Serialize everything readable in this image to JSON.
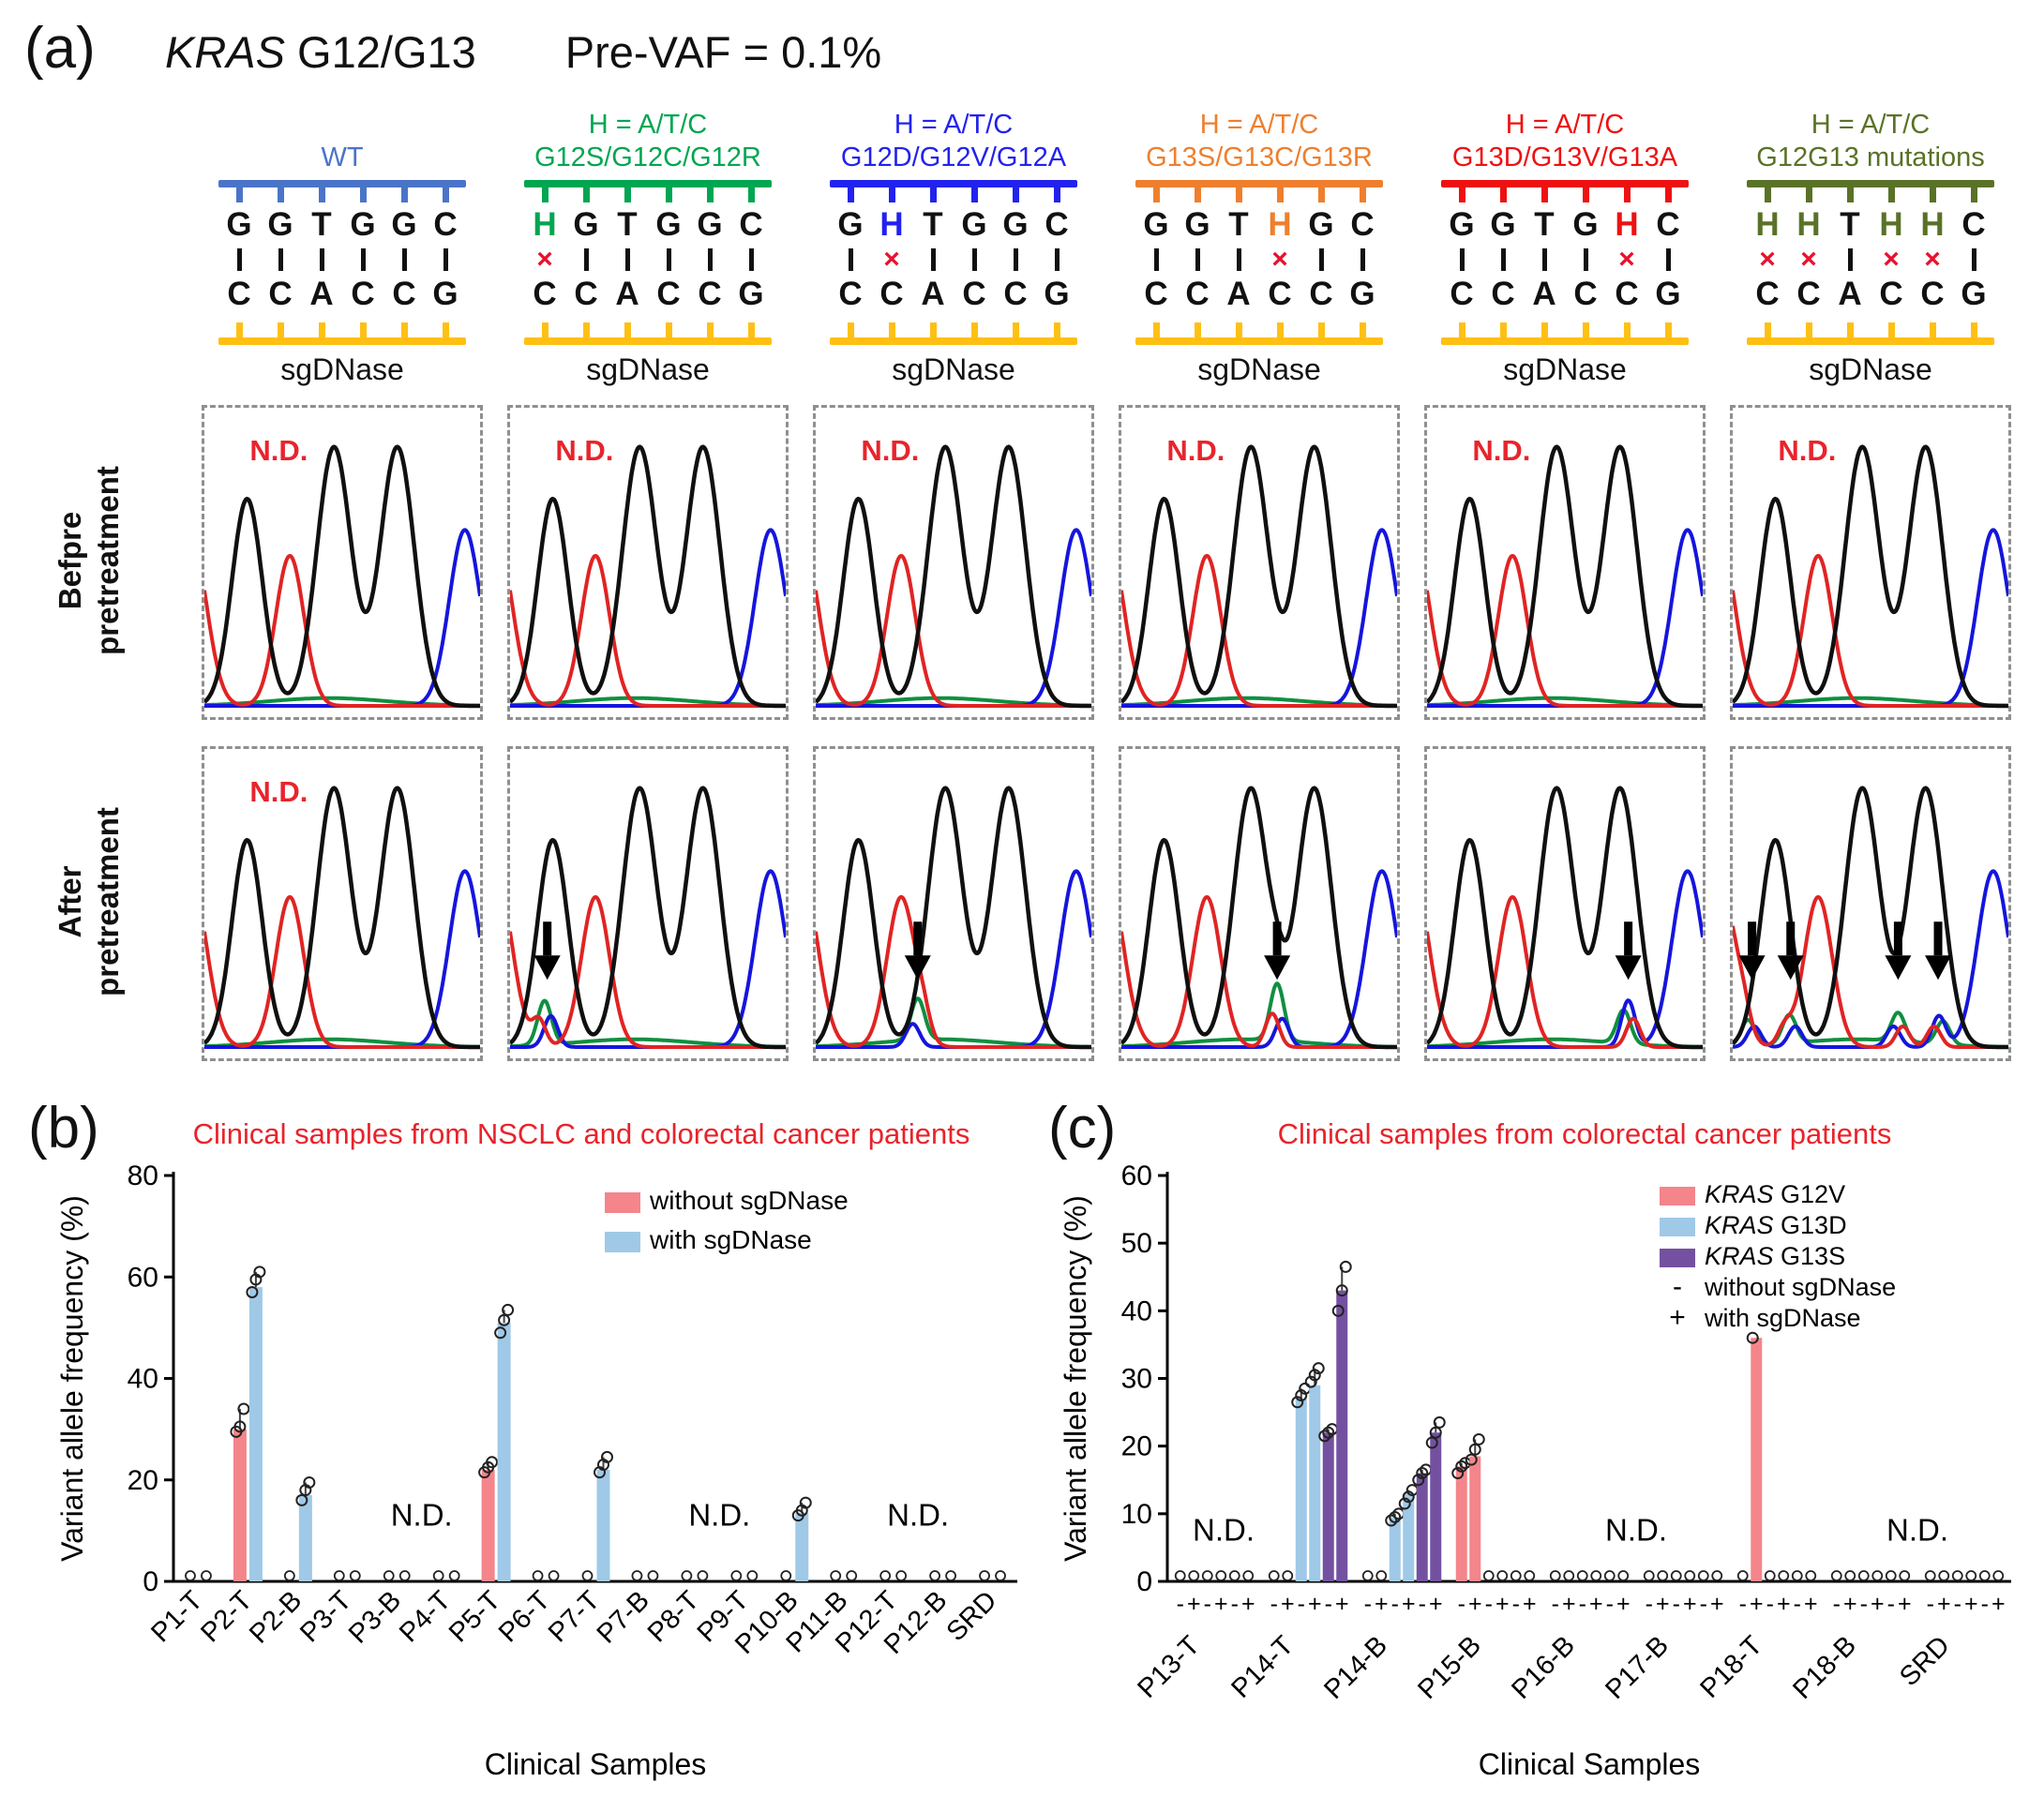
{
  "panel_a": {
    "label": "(a)",
    "title_gene": "KRAS",
    "title_rest": " G12/G13",
    "title_vaf": "Pre-VAF = 0.1%",
    "before_label": [
      "Befpre",
      "pretreatment"
    ],
    "after_label": [
      "After",
      "pretreatment"
    ],
    "nd_label": "N.D.",
    "sgdnase_label": "sgDNase",
    "mismatch_symbol": "×",
    "probe_color": "#ffc013",
    "nd_color": "#e8242c",
    "trace_colors": {
      "black": "#101010",
      "red": "#e02424",
      "blue": "#1515dd",
      "green": "#0f8f3f"
    },
    "columns": [
      {
        "header": [
          "WT"
        ],
        "color": "#4a74c8",
        "top": "GGTGGC",
        "bottom": "CCACCG",
        "h_positions": [],
        "mismatches": [],
        "before_nd": true,
        "after_nd": true,
        "arrows": [],
        "bumps": []
      },
      {
        "header": [
          "H = A/T/C",
          "G12S/G12C/G12R"
        ],
        "color": "#00a651",
        "top": "HGTGGC",
        "bottom": "CCACCG",
        "h_positions": [
          0
        ],
        "mismatches": [
          0
        ],
        "before_nd": true,
        "after_nd": false,
        "arrows": [
          0.135
        ],
        "bumps": [
          {
            "c": "green",
            "x": 0.125,
            "h": 0.17
          },
          {
            "c": "blue",
            "x": 0.148,
            "h": 0.12
          },
          {
            "c": "red",
            "x": 0.105,
            "h": 0.1
          }
        ]
      },
      {
        "header": [
          "H = A/T/C",
          "G12D/G12V/G12A"
        ],
        "color": "#2222ee",
        "top": "GHTGGC",
        "bottom": "CCACCG",
        "h_positions": [
          1
        ],
        "mismatches": [
          1
        ],
        "before_nd": true,
        "after_nd": false,
        "arrows": [
          0.37
        ],
        "bumps": [
          {
            "c": "green",
            "x": 0.37,
            "h": 0.16
          },
          {
            "c": "blue",
            "x": 0.352,
            "h": 0.09
          },
          {
            "c": "red",
            "x": 0.39,
            "h": 0.07
          }
        ]
      },
      {
        "header": [
          "H = A/T/C",
          "G13S/G13C/G13R"
        ],
        "color": "#ef7f2e",
        "top": "GGTHGC",
        "bottom": "CCACCG",
        "h_positions": [
          3
        ],
        "mismatches": [
          3
        ],
        "before_nd": true,
        "after_nd": false,
        "arrows": [
          0.565
        ],
        "bumps": [
          {
            "c": "green",
            "x": 0.565,
            "h": 0.22
          },
          {
            "c": "red",
            "x": 0.547,
            "h": 0.13
          },
          {
            "c": "blue",
            "x": 0.583,
            "h": 0.11
          },
          {
            "c": "black",
            "x": 0.565,
            "h": 0.08
          }
        ]
      },
      {
        "header": [
          "H = A/T/C",
          "G13D/G13V/G13A"
        ],
        "color": "#ee1111",
        "top": "GGTGHC",
        "bottom": "CCACCG",
        "h_positions": [
          4
        ],
        "mismatches": [
          4
        ],
        "before_nd": true,
        "after_nd": false,
        "arrows": [
          0.73
        ],
        "bumps": [
          {
            "c": "blue",
            "x": 0.73,
            "h": 0.18
          },
          {
            "c": "green",
            "x": 0.713,
            "h": 0.13
          },
          {
            "c": "red",
            "x": 0.748,
            "h": 0.11
          }
        ]
      },
      {
        "header": [
          "H = A/T/C",
          "G12G13 mutations"
        ],
        "color": "#5a7227",
        "top": "HHTHHC",
        "bottom": "CCACCG",
        "h_positions": [
          0,
          1,
          3,
          4
        ],
        "mismatches": [
          0,
          1,
          3,
          4
        ],
        "before_nd": true,
        "after_nd": false,
        "arrows": [
          0.07,
          0.21,
          0.6,
          0.745
        ],
        "bumps": [
          {
            "c": "green",
            "x": 0.055,
            "h": 0.1
          },
          {
            "c": "blue",
            "x": 0.078,
            "h": 0.08
          },
          {
            "c": "red",
            "x": 0.038,
            "h": 0.07
          },
          {
            "c": "green",
            "x": 0.205,
            "h": 0.11
          },
          {
            "c": "blue",
            "x": 0.227,
            "h": 0.08
          },
          {
            "c": "red",
            "x": 0.188,
            "h": 0.07
          },
          {
            "c": "green",
            "x": 0.6,
            "h": 0.11
          },
          {
            "c": "blue",
            "x": 0.583,
            "h": 0.08
          },
          {
            "c": "red",
            "x": 0.617,
            "h": 0.08
          },
          {
            "c": "blue",
            "x": 0.748,
            "h": 0.12
          },
          {
            "c": "green",
            "x": 0.763,
            "h": 0.09
          },
          {
            "c": "red",
            "x": 0.73,
            "h": 0.08
          }
        ]
      }
    ]
  },
  "panel_b": {
    "label": "(b)",
    "chart_data": {
      "type": "bar",
      "title": "Clinical samples from NSCLC and colorectal cancer patients",
      "title_color": "#e8232b",
      "xlabel": "Clinical Samples",
      "ylabel": "Variant allele frequency (%)",
      "ylim": [
        0,
        80
      ],
      "yticks": [
        0,
        20,
        40,
        60,
        80
      ],
      "grid": false,
      "legend_position": "top-right",
      "categories": [
        "P1-T",
        "P2-T",
        "P2-B",
        "P3-T",
        "P3-B",
        "P4-T",
        "P5-T",
        "P6-T",
        "P7-T",
        "P7-B",
        "P8-T",
        "P9-T",
        "P10-B",
        "P11-B",
        "P12-T",
        "P12-B",
        "SRD"
      ],
      "series": [
        {
          "name": "without sgDNase",
          "color": "#f4858b",
          "values": [
            0,
            30,
            0,
            0,
            0,
            0,
            22,
            0,
            0,
            0,
            0,
            0,
            0,
            0,
            0,
            0,
            0
          ],
          "points": {
            "1": [
              29.5,
              30.5,
              34
            ],
            "6": [
              21.5,
              22.5,
              23.5
            ]
          }
        },
        {
          "name": "with sgDNase",
          "color": "#9fc9e7",
          "values": [
            0,
            58,
            17,
            0,
            0,
            0,
            51,
            0,
            22,
            0,
            0,
            0,
            13.5,
            0,
            0,
            0,
            0
          ],
          "points": {
            "1": [
              57,
              59.5,
              61
            ],
            "2": [
              16,
              18,
              19.5
            ],
            "6": [
              49,
              51.5,
              53.5
            ],
            "8": [
              21.5,
              23,
              24.5
            ],
            "12": [
              13,
              14,
              15.5
            ]
          }
        }
      ],
      "nd_text": "N.D.",
      "nd_annotations": [
        {
          "i": 4.5,
          "y": 11
        },
        {
          "i": 10.5,
          "y": 11
        },
        {
          "i": 14.5,
          "y": 11
        }
      ]
    }
  },
  "panel_c": {
    "label": "(c)",
    "chart_data": {
      "type": "bar",
      "title": "Clinical samples from colorectal cancer patients",
      "title_color": "#e8232b",
      "xlabel": "Clinical Samples",
      "ylabel": "Variant allele frequency (%)",
      "ylim": [
        0,
        60
      ],
      "yticks": [
        0,
        10,
        20,
        30,
        40,
        50,
        60
      ],
      "grid": false,
      "legend_position": "top-right",
      "categories": [
        "P13-T",
        "P14-T",
        "P14-B",
        "P15-B",
        "P16-B",
        "P17-B",
        "P18-T",
        "P18-B",
        "SRD"
      ],
      "series": [
        {
          "name": "KRAS G12V",
          "sign": "-",
          "color": "#f4858b",
          "values": [
            0,
            0,
            0,
            17,
            0,
            0,
            0,
            0,
            0
          ],
          "points": {
            "3": [
              16,
              17,
              17.5
            ]
          }
        },
        {
          "name": "KRAS G12V",
          "sign": "+",
          "color": "#f4858b",
          "values": [
            0,
            0,
            0,
            18.5,
            0,
            0,
            36,
            0,
            0
          ],
          "points": {
            "3": [
              18,
              19.5,
              21
            ],
            "6": [
              36
            ]
          }
        },
        {
          "name": "KRAS G13D",
          "sign": "-",
          "color": "#9fc9e7",
          "values": [
            0,
            27,
            9.5,
            0,
            0,
            0,
            0,
            0,
            0
          ],
          "points": {
            "1": [
              26.5,
              27.5,
              28.5
            ],
            "2": [
              9,
              9.5,
              10
            ]
          }
        },
        {
          "name": "KRAS G13D",
          "sign": "+",
          "color": "#9fc9e7",
          "values": [
            0,
            29,
            13,
            0,
            0,
            0,
            0,
            0,
            0
          ],
          "points": {
            "1": [
              29.5,
              30.5,
              31.5
            ],
            "2": [
              11.5,
              12.5,
              13.5
            ]
          }
        },
        {
          "name": "KRAS G13S",
          "sign": "-",
          "color": "#7451a0",
          "values": [
            0,
            22,
            16,
            0,
            0,
            0,
            0,
            0,
            0
          ],
          "points": {
            "1": [
              21.5,
              22,
              22.5
            ],
            "2": [
              15,
              16,
              16.5
            ]
          }
        },
        {
          "name": "KRAS G13S",
          "sign": "+",
          "color": "#7451a0",
          "values": [
            0,
            43,
            22,
            0,
            0,
            0,
            0,
            0,
            0
          ],
          "points": {
            "1": [
              40,
              43,
              46.5
            ],
            "2": [
              20.5,
              22,
              23.5
            ]
          }
        }
      ],
      "legend_colors": [
        {
          "gene": "KRAS",
          "rest": " G12V",
          "color": "#f4858b"
        },
        {
          "gene": "KRAS",
          "rest": " G13D",
          "color": "#9fc9e7"
        },
        {
          "gene": "KRAS",
          "rest": " G13S",
          "color": "#7451a0"
        }
      ],
      "legend_signs": [
        {
          "sym": "-",
          "label": "without sgDNase"
        },
        {
          "sym": "+",
          "label": "with sgDNase"
        }
      ],
      "nd_text": "N.D.",
      "nd_annotations": [
        {
          "i": 0.1,
          "y": 6
        },
        {
          "i": 4.5,
          "y": 6
        },
        {
          "i": 7.5,
          "y": 6
        }
      ]
    }
  }
}
